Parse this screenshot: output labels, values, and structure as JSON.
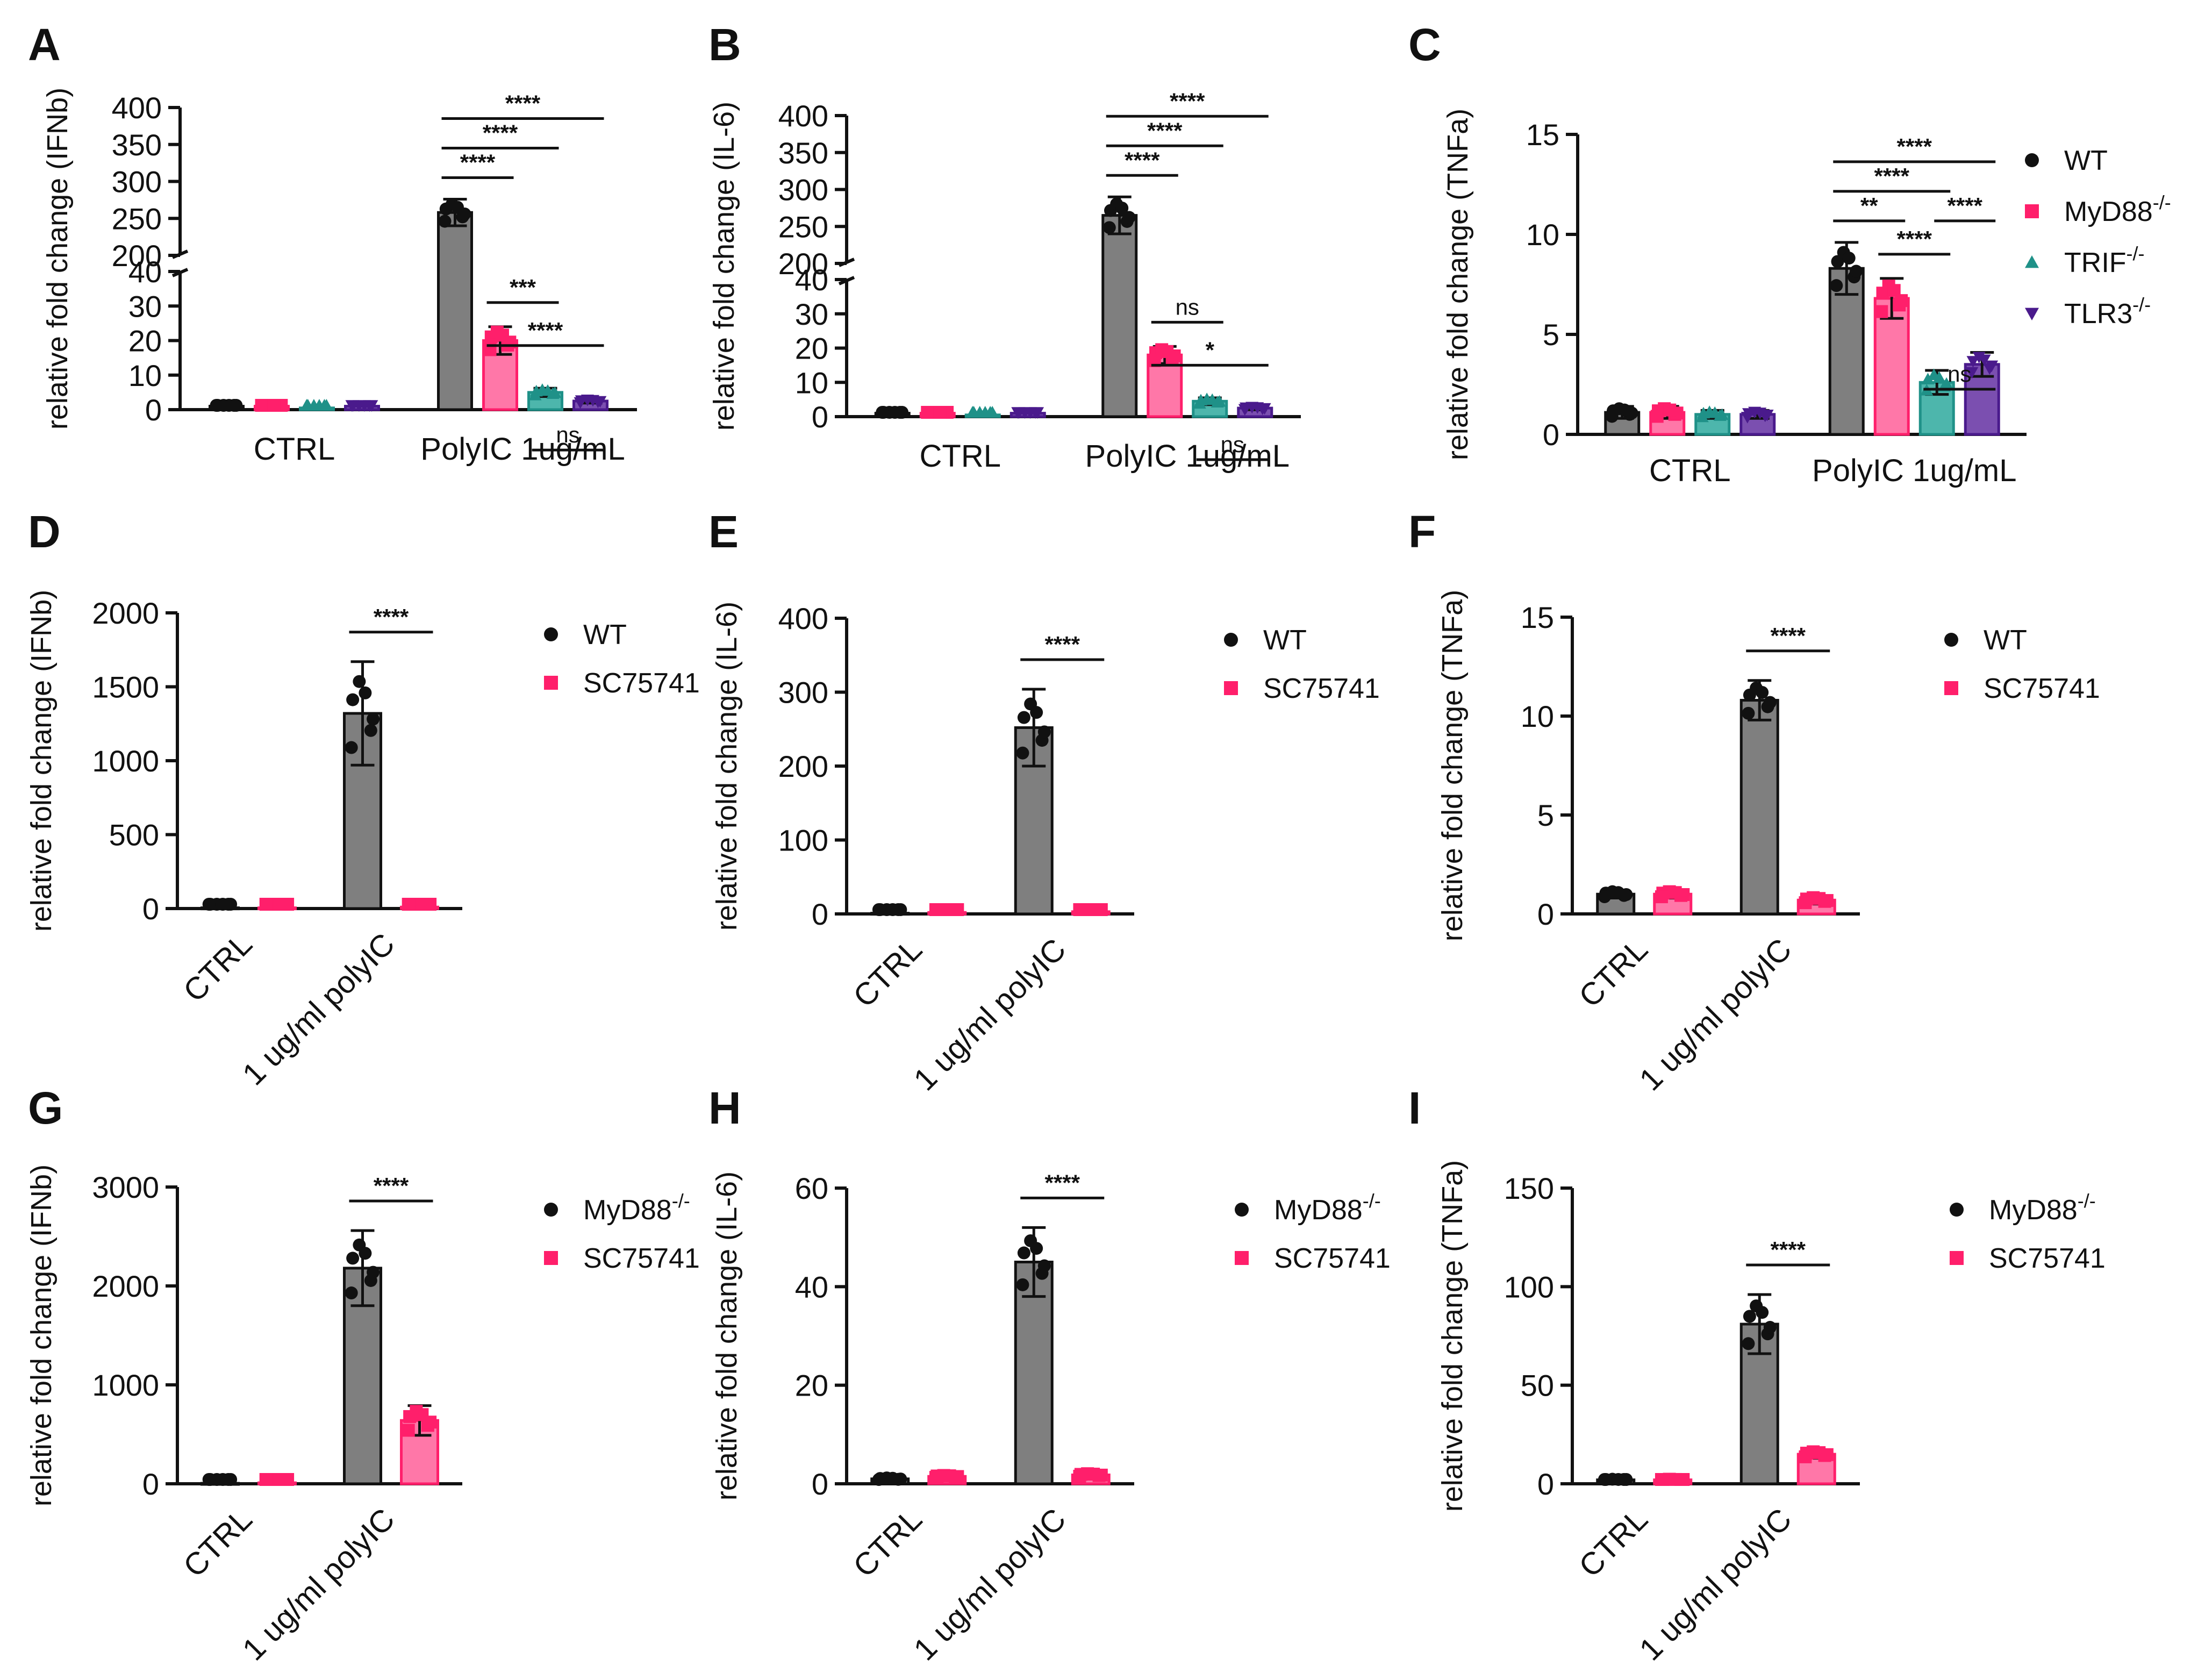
{
  "colors": {
    "WT": "#7f7f7f",
    "WT_dot": "#111111",
    "MyD88": "#ff77a8",
    "MyD88_dot": "#ff1f6b",
    "TRIF": "#4db6ac",
    "TRIF_dot": "#1f9188",
    "TLR3": "#7b4fb0",
    "TLR3_dot": "#4a1a8c",
    "SC75741": "#ff77a8",
    "SC75741_dot": "#ff1f6b"
  },
  "chart_data": [
    {
      "panel": "A",
      "type": "bar",
      "broken_axis": true,
      "ylabel": "relative fold change (IFNb)",
      "categories": [
        "CTRL",
        "PolyIC 1ug/mL"
      ],
      "ylim_lower": [
        0,
        40
      ],
      "ylim_upper": [
        200,
        400
      ],
      "yticks_lower": [
        "0",
        "10",
        "20",
        "30",
        "40"
      ],
      "yticks_upper": [
        "200",
        "250",
        "300",
        "350",
        "400"
      ],
      "series": [
        {
          "key": "WT",
          "values": [
            1,
            258
          ],
          "errors": [
            0.2,
            18
          ]
        },
        {
          "key": "MyD88",
          "values": [
            1,
            20
          ],
          "errors": [
            0.2,
            4
          ]
        },
        {
          "key": "TRIF",
          "values": [
            0.5,
            5
          ],
          "errors": [
            0.1,
            1.2
          ]
        },
        {
          "key": "TLR3",
          "values": [
            1,
            2.5
          ],
          "errors": [
            0.2,
            0.6
          ]
        }
      ],
      "comparisons": [
        {
          "group": 1,
          "from": 0,
          "to": 1,
          "label": "****",
          "level": 1
        },
        {
          "group": 1,
          "from": 0,
          "to": 2,
          "label": "****",
          "level": 2
        },
        {
          "group": 1,
          "from": 0,
          "to": 3,
          "label": "****",
          "level": 3
        },
        {
          "group": 1,
          "from": 1,
          "to": 2,
          "label": "***",
          "level": -1
        },
        {
          "group": 1,
          "from": 1,
          "to": 3,
          "label": "****",
          "level": -2
        },
        {
          "group": 1,
          "from": 2,
          "to": 3,
          "label": "ns",
          "level": -3
        }
      ]
    },
    {
      "panel": "B",
      "type": "bar",
      "broken_axis": true,
      "ylabel": "relative fold change (IL-6)",
      "categories": [
        "CTRL",
        "PolyIC 1ug/mL"
      ],
      "ylim_lower": [
        0,
        40
      ],
      "ylim_upper": [
        200,
        400
      ],
      "yticks_lower": [
        "0",
        "10",
        "20",
        "30",
        "40"
      ],
      "yticks_upper": [
        "200",
        "250",
        "300",
        "350",
        "400"
      ],
      "series": [
        {
          "key": "WT",
          "values": [
            1,
            265
          ],
          "errors": [
            0.2,
            25
          ]
        },
        {
          "key": "MyD88",
          "values": [
            1,
            18
          ],
          "errors": [
            0.2,
            2.5
          ]
        },
        {
          "key": "TRIF",
          "values": [
            0.5,
            4.5
          ],
          "errors": [
            0.1,
            1
          ]
        },
        {
          "key": "TLR3",
          "values": [
            1,
            2.5
          ],
          "errors": [
            0.2,
            0.5
          ]
        }
      ],
      "comparisons": [
        {
          "group": 1,
          "from": 0,
          "to": 1,
          "label": "****",
          "level": 1
        },
        {
          "group": 1,
          "from": 0,
          "to": 2,
          "label": "****",
          "level": 2
        },
        {
          "group": 1,
          "from": 0,
          "to": 3,
          "label": "****",
          "level": 3
        },
        {
          "group": 1,
          "from": 1,
          "to": 2,
          "label": "ns",
          "level": -1
        },
        {
          "group": 1,
          "from": 1,
          "to": 3,
          "label": "*",
          "level": -2
        },
        {
          "group": 1,
          "from": 2,
          "to": 3,
          "label": "ns",
          "level": -3
        }
      ]
    },
    {
      "panel": "C",
      "type": "bar",
      "broken_axis": false,
      "ylabel": "relative fold change (TNFa)",
      "categories": [
        "CTRL",
        "PolyIC 1ug/mL"
      ],
      "ylim": [
        0,
        15
      ],
      "yticks": [
        "0",
        "5",
        "10",
        "15"
      ],
      "series": [
        {
          "key": "WT",
          "name": "WT",
          "values": [
            1.1,
            8.3
          ],
          "errors": [
            0.3,
            1.3
          ]
        },
        {
          "key": "MyD88",
          "name": "MyD88",
          "sup": "-/-",
          "values": [
            1.1,
            6.8
          ],
          "errors": [
            0.3,
            1.0
          ]
        },
        {
          "key": "TRIF",
          "name": "TRIF",
          "sup": "-/-",
          "values": [
            1.0,
            2.6
          ],
          "errors": [
            0.2,
            0.6
          ]
        },
        {
          "key": "TLR3",
          "name": "TLR3",
          "sup": "-/-",
          "values": [
            1.0,
            3.5
          ],
          "errors": [
            0.2,
            0.6
          ]
        }
      ],
      "comparisons": [
        {
          "group": 1,
          "from": 0,
          "to": 1,
          "label": "**",
          "level": 1
        },
        {
          "group": 1,
          "from": 0,
          "to": 2,
          "label": "****",
          "level": 2
        },
        {
          "group": 1,
          "from": 0,
          "to": 3,
          "label": "****",
          "level": 3
        },
        {
          "group": 1,
          "from": 1,
          "to": 3,
          "label": "****",
          "level": 1,
          "offset": 1
        },
        {
          "group": 1,
          "from": 1,
          "to": 2,
          "label": "****",
          "level": -1
        },
        {
          "group": 1,
          "from": 2,
          "to": 3,
          "label": "ns",
          "level": -2
        }
      ]
    },
    {
      "panel": "D",
      "type": "bar",
      "broken_axis": false,
      "ylabel": "relative fold change (IFNb)",
      "categories": [
        "CTRL",
        "1 ug/ml polyIC"
      ],
      "ylim": [
        0,
        2000
      ],
      "yticks": [
        "0",
        "500",
        "1000",
        "1500",
        "2000"
      ],
      "series": [
        {
          "key": "WT",
          "name": "WT",
          "values": [
            5,
            1320
          ],
          "errors": [
            2,
            350
          ]
        },
        {
          "key": "SC75741",
          "name": "SC75741",
          "values": [
            5,
            10
          ],
          "errors": [
            2,
            3
          ]
        }
      ],
      "comparisons": [
        {
          "group": 1,
          "from": 0,
          "to": 1,
          "label": "****",
          "level": 1
        }
      ]
    },
    {
      "panel": "E",
      "type": "bar",
      "broken_axis": false,
      "ylabel": "relative fold change (IL-6)",
      "categories": [
        "CTRL",
        "1 ug/ml polyIC"
      ],
      "ylim": [
        0,
        400
      ],
      "yticks": [
        "0",
        "100",
        "200",
        "300",
        "400"
      ],
      "series": [
        {
          "key": "WT",
          "name": "WT",
          "values": [
            1,
            252
          ],
          "errors": [
            0.3,
            52
          ]
        },
        {
          "key": "SC75741",
          "name": "SC75741",
          "values": [
            2,
            3
          ],
          "errors": [
            0.5,
            0.8
          ]
        }
      ],
      "comparisons": [
        {
          "group": 1,
          "from": 0,
          "to": 1,
          "label": "****",
          "level": 1
        }
      ]
    },
    {
      "panel": "F",
      "type": "bar",
      "broken_axis": false,
      "ylabel": "relative fold change (TNFa)",
      "categories": [
        "CTRL",
        "1 ug/ml polyIC"
      ],
      "ylim": [
        0,
        15
      ],
      "yticks": [
        "0",
        "5",
        "10",
        "15"
      ],
      "series": [
        {
          "key": "WT",
          "name": "WT",
          "values": [
            1.0,
            10.8
          ],
          "errors": [
            0.2,
            1.0
          ]
        },
        {
          "key": "SC75741",
          "name": "SC75741",
          "values": [
            1.0,
            0.7
          ],
          "errors": [
            0.2,
            0.2
          ]
        }
      ],
      "comparisons": [
        {
          "group": 1,
          "from": 0,
          "to": 1,
          "label": "****",
          "level": 1
        }
      ]
    },
    {
      "panel": "G",
      "type": "bar",
      "broken_axis": false,
      "ylabel": "relative fold change (IFNb)",
      "categories": [
        "CTRL",
        "1 ug/ml polyIC"
      ],
      "ylim": [
        0,
        3000
      ],
      "yticks": [
        "0",
        "1000",
        "2000",
        "3000"
      ],
      "series": [
        {
          "key": "WT",
          "name": "MyD88",
          "sup": "-/-",
          "values": [
            5,
            2180
          ],
          "errors": [
            2,
            380
          ]
        },
        {
          "key": "SC75741",
          "name": "SC75741",
          "values": [
            10,
            640
          ],
          "errors": [
            3,
            150
          ]
        }
      ],
      "comparisons": [
        {
          "group": 1,
          "from": 0,
          "to": 1,
          "label": "****",
          "level": 1
        }
      ]
    },
    {
      "panel": "H",
      "type": "bar",
      "broken_axis": false,
      "ylabel": "relative fold change (IL-6)",
      "categories": [
        "CTRL",
        "1 ug/ml polyIC"
      ],
      "ylim": [
        0,
        60
      ],
      "yticks": [
        "0",
        "20",
        "40",
        "60"
      ],
      "series": [
        {
          "key": "WT",
          "name": "MyD88",
          "sup": "-/-",
          "values": [
            1,
            45
          ],
          "errors": [
            0.3,
            7
          ]
        },
        {
          "key": "SC75741",
          "name": "SC75741",
          "values": [
            1.5,
            1.8
          ],
          "errors": [
            0.3,
            0.4
          ]
        }
      ],
      "comparisons": [
        {
          "group": 1,
          "from": 0,
          "to": 1,
          "label": "****",
          "level": 1
        }
      ]
    },
    {
      "panel": "I",
      "type": "bar",
      "broken_axis": false,
      "ylabel": "relative fold change (TNFa)",
      "categories": [
        "CTRL",
        "1 ug/ml polyIC"
      ],
      "ylim": [
        0,
        150
      ],
      "yticks": [
        "0",
        "50",
        "100",
        "150"
      ],
      "series": [
        {
          "key": "WT",
          "name": "MyD88",
          "sup": "-/-",
          "values": [
            2,
            81
          ],
          "errors": [
            0.5,
            15
          ]
        },
        {
          "key": "SC75741",
          "name": "SC75741",
          "values": [
            2,
            15
          ],
          "errors": [
            0.5,
            2
          ]
        }
      ],
      "comparisons": [
        {
          "group": 1,
          "from": 0,
          "to": 1,
          "label": "****",
          "level": 1
        }
      ]
    }
  ]
}
